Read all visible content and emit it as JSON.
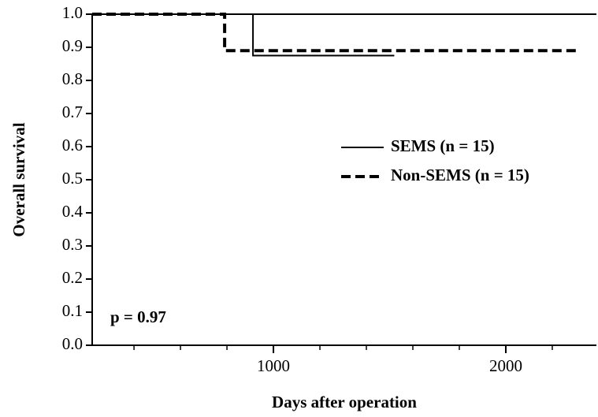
{
  "chart_data": {
    "type": "line",
    "xlabel": "Days after operation",
    "ylabel": "Overall survival",
    "annotation": "p = 0.97",
    "xlim": [
      220,
      2390
    ],
    "ylim": [
      0,
      1
    ],
    "xticks": [
      1000,
      2000
    ],
    "x_minor_ticks": [
      400,
      600,
      800,
      1200,
      1400,
      1600,
      1800,
      2200
    ],
    "yticks": [
      {
        "value": 0,
        "label": "0.0"
      },
      0.1,
      0.2,
      0.3,
      0.4,
      0.5,
      0.6,
      0.7,
      0.8,
      0.9,
      {
        "value": 1,
        "label": "1.0"
      }
    ],
    "legend": "right",
    "series": [
      {
        "name": "SEMS (n = 15)",
        "color": "#000000",
        "dash": "solid",
        "x": [
          220,
          912,
          912,
          1520
        ],
        "values": [
          1,
          1,
          0.875,
          0.875
        ]
      },
      {
        "name": "Non-SEMS (n = 15)",
        "color": "#000000",
        "dash": "dashed",
        "x": [
          220,
          790,
          790,
          2320
        ],
        "values": [
          1,
          1,
          0.89,
          0.89
        ]
      }
    ]
  }
}
